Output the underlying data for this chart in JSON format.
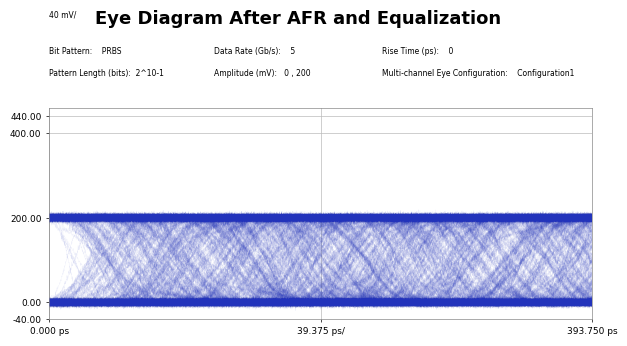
{
  "title": "Eye Diagram After AFR and Equalization",
  "subtitle_left1": "Bit Pattern:    PRBS",
  "subtitle_left2": "Pattern Length (bits):  2^10-1",
  "subtitle_center1": "Data Rate (Gb/s):    5",
  "subtitle_center2": "Amplitude (mV):   0 , 200",
  "subtitle_right1": "Rise Time (ps):    0",
  "subtitle_right2": "Multi-channel Eye Configuration:    Configuration1",
  "ylabel_top": "40 mV/",
  "yticks": [
    440.0,
    400.0,
    200.0,
    0.0,
    -40.0
  ],
  "ytick_labels": [
    "440.00",
    "400.00",
    "200.00",
    "0.00",
    "-40.00"
  ],
  "xtick_labels": [
    "0.000 ps",
    "39.375 ps/",
    "393.750 ps"
  ],
  "ymin": -40,
  "ymax": 460,
  "xmin": 0,
  "xmax": 393.75,
  "line_color": "#2233BB",
  "bg_color": "#FFFFFF",
  "grid_color": "#BBBBBB",
  "title_fontsize": 13,
  "label_fontsize": 6.5,
  "num_traces": 600,
  "bit_period": 200.0,
  "amplitude_low": 0.0,
  "amplitude_high": 200.0,
  "noise_std": 4.0,
  "jitter_std": 4.0,
  "alpha": 0.1,
  "linewidth": 0.25
}
